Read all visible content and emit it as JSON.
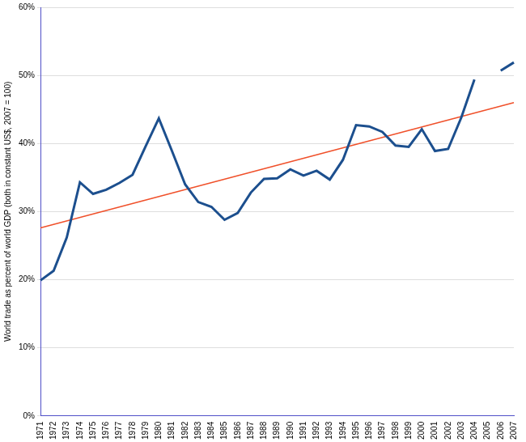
{
  "chart_data": {
    "type": "line",
    "y_label": "World trade as percent of world GDP (both in constant US$, 2007 = 100)",
    "categories": [
      1971,
      1972,
      1973,
      1974,
      1975,
      1976,
      1977,
      1978,
      1979,
      1980,
      1981,
      1982,
      1983,
      1984,
      1985,
      1986,
      1987,
      1988,
      1989,
      1990,
      1991,
      1992,
      1993,
      1994,
      1995,
      1996,
      1997,
      1998,
      1999,
      2000,
      2001,
      2002,
      2003,
      2004,
      2005,
      2006,
      2007
    ],
    "series": [
      {
        "color": "#1c4f8e",
        "values": [
          19.9,
          21.3,
          26.2,
          34.3,
          32.6,
          33.2,
          34.2,
          35.4,
          39.6,
          43.7,
          38.9,
          34.0,
          31.4,
          30.7,
          28.8,
          29.8,
          32.8,
          34.8,
          34.9,
          36.2,
          35.3,
          36.0,
          34.7,
          37.6,
          42.7,
          42.5,
          41.7,
          39.7,
          39.5,
          42.1,
          38.9,
          39.2,
          43.8,
          49.4,
          null,
          50.7,
          51.9
        ]
      },
      {
        "color": "#f0502a",
        "values": [
          27.6,
          null,
          null,
          null,
          null,
          null,
          null,
          null,
          null,
          null,
          null,
          null,
          null,
          null,
          null,
          null,
          null,
          null,
          null,
          null,
          null,
          null,
          null,
          null,
          null,
          null,
          null,
          null,
          null,
          null,
          null,
          null,
          null,
          null,
          null,
          null,
          46.0
        ]
      }
    ],
    "ylim": [
      0,
      60
    ],
    "yticks": [
      {
        "value": 0,
        "label": "0%"
      },
      {
        "value": 10,
        "label": "10%"
      },
      {
        "value": 20,
        "label": "20%"
      },
      {
        "value": 30,
        "label": "30%"
      },
      {
        "value": 40,
        "label": "40%"
      },
      {
        "value": 50,
        "label": "50%"
      },
      {
        "value": 60,
        "label": "60%"
      }
    ],
    "grid": true
  }
}
